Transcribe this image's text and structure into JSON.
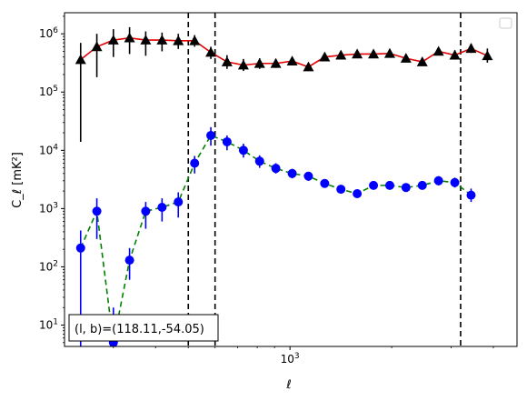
{
  "chart_data": {
    "type": "scatter",
    "title": "",
    "xlabel": "ℓ",
    "ylabel": "C_ℓ [mK²]",
    "xscale": "log",
    "yscale": "log",
    "xlim": [
      215,
      4700
    ],
    "ylim": [
      4.3,
      2300000
    ],
    "grid": false,
    "legend": "top-right (empty)",
    "x_tick_labels": [
      {
        "value": 1000,
        "label": "10^3"
      }
    ],
    "y_tick_labels": [
      {
        "value": 10,
        "label": "10^1"
      },
      {
        "value": 100,
        "label": "10^2"
      },
      {
        "value": 1000,
        "label": "10^3"
      },
      {
        "value": 10000,
        "label": "10^4"
      },
      {
        "value": 100000,
        "label": "10^5"
      },
      {
        "value": 1000000,
        "label": "10^6"
      }
    ],
    "vlines": [
      {
        "x": 500,
        "style": "dashed",
        "color": "#000000"
      },
      {
        "x": 600,
        "style": "dashed",
        "color": "#000000"
      },
      {
        "x": 3200,
        "style": "dashed",
        "color": "#000000"
      }
    ],
    "annotation": "(l, b)=(118.11,-54.05)",
    "series": [
      {
        "marker": "triangle",
        "marker_color": "#000000",
        "line_color": "#e00000",
        "line_style": "solid",
        "points": [
          {
            "x": 240,
            "y": 360000,
            "lo": 14000,
            "hi": 700000
          },
          {
            "x": 268,
            "y": 600000,
            "lo": 180000,
            "hi": 1000000
          },
          {
            "x": 300,
            "y": 780000,
            "lo": 400000,
            "hi": 1200000
          },
          {
            "x": 335,
            "y": 850000,
            "lo": 450000,
            "hi": 1300000
          },
          {
            "x": 374,
            "y": 780000,
            "lo": 420000,
            "hi": 1100000
          },
          {
            "x": 418,
            "y": 780000,
            "lo": 500000,
            "hi": 1050000
          },
          {
            "x": 467,
            "y": 760000,
            "lo": 550000,
            "hi": 1000000
          },
          {
            "x": 522,
            "y": 760000,
            "lo": 600000,
            "hi": 950000
          },
          {
            "x": 583,
            "y": 480000,
            "lo": 370000,
            "hi": 600000
          },
          {
            "x": 651,
            "y": 330000,
            "lo": 250000,
            "hi": 430000
          },
          {
            "x": 728,
            "y": 290000,
            "lo": 230000,
            "hi": 370000
          },
          {
            "x": 813,
            "y": 310000,
            "lo": 250000,
            "hi": 380000
          },
          {
            "x": 908,
            "y": 310000,
            "lo": 260000,
            "hi": 370000
          },
          {
            "x": 1015,
            "y": 340000,
            "lo": 290000,
            "hi": 400000
          },
          {
            "x": 1134,
            "y": 270000,
            "lo": 230000,
            "hi": 320000
          },
          {
            "x": 1267,
            "y": 400000,
            "lo": 350000,
            "hi": 460000
          },
          {
            "x": 1415,
            "y": 430000,
            "lo": 380000,
            "hi": 490000
          },
          {
            "x": 1581,
            "y": 450000,
            "lo": 400000,
            "hi": 510000
          },
          {
            "x": 1767,
            "y": 450000,
            "lo": 400000,
            "hi": 510000
          },
          {
            "x": 1974,
            "y": 460000,
            "lo": 410000,
            "hi": 520000
          },
          {
            "x": 2205,
            "y": 380000,
            "lo": 330000,
            "hi": 440000
          },
          {
            "x": 2464,
            "y": 330000,
            "lo": 290000,
            "hi": 380000
          },
          {
            "x": 2753,
            "y": 500000,
            "lo": 430000,
            "hi": 580000
          },
          {
            "x": 3076,
            "y": 430000,
            "lo": 360000,
            "hi": 520000
          },
          {
            "x": 3437,
            "y": 560000,
            "lo": 470000,
            "hi": 680000
          },
          {
            "x": 3840,
            "y": 420000,
            "lo": 320000,
            "hi": 560000
          }
        ]
      },
      {
        "marker": "circle",
        "marker_color": "#0000ff",
        "line_color": "#008000",
        "line_style": "dashed",
        "points": [
          {
            "x": 240,
            "y": 210,
            "lo": 0,
            "hi": 420
          },
          {
            "x": 268,
            "y": 900,
            "lo": 300,
            "hi": 1500
          },
          {
            "x": 300,
            "y": 5,
            "lo": 0,
            "hi": 20
          },
          {
            "x": 335,
            "y": 130,
            "lo": 60,
            "hi": 210
          },
          {
            "x": 374,
            "y": 900,
            "lo": 450,
            "hi": 1300
          },
          {
            "x": 418,
            "y": 1050,
            "lo": 600,
            "hi": 1500
          },
          {
            "x": 467,
            "y": 1300,
            "lo": 700,
            "hi": 1900
          },
          {
            "x": 522,
            "y": 6000,
            "lo": 4000,
            "hi": 8000
          },
          {
            "x": 583,
            "y": 18000,
            "lo": 12000,
            "hi": 25000
          },
          {
            "x": 651,
            "y": 14000,
            "lo": 10000,
            "hi": 18000
          },
          {
            "x": 728,
            "y": 10000,
            "lo": 7500,
            "hi": 13000
          },
          {
            "x": 813,
            "y": 6500,
            "lo": 5000,
            "hi": 8200
          },
          {
            "x": 908,
            "y": 4900,
            "lo": 4000,
            "hi": 6000
          },
          {
            "x": 1015,
            "y": 4000,
            "lo": 3300,
            "hi": 4800
          },
          {
            "x": 1134,
            "y": 3600,
            "lo": 3000,
            "hi": 4200
          },
          {
            "x": 1267,
            "y": 2700,
            "lo": 2300,
            "hi": 3100
          },
          {
            "x": 1415,
            "y": 2150,
            "lo": 1850,
            "hi": 2500
          },
          {
            "x": 1581,
            "y": 1800,
            "lo": 1550,
            "hi": 2100
          },
          {
            "x": 1767,
            "y": 2500,
            "lo": 2200,
            "hi": 2850
          },
          {
            "x": 1974,
            "y": 2500,
            "lo": 2200,
            "hi": 2850
          },
          {
            "x": 2205,
            "y": 2300,
            "lo": 2000,
            "hi": 2650
          },
          {
            "x": 2464,
            "y": 2500,
            "lo": 2150,
            "hi": 2900
          },
          {
            "x": 2753,
            "y": 3000,
            "lo": 2500,
            "hi": 3600
          },
          {
            "x": 3076,
            "y": 2800,
            "lo": 2300,
            "hi": 3400
          },
          {
            "x": 3437,
            "y": 1700,
            "lo": 1300,
            "hi": 2200
          }
        ]
      }
    ]
  }
}
